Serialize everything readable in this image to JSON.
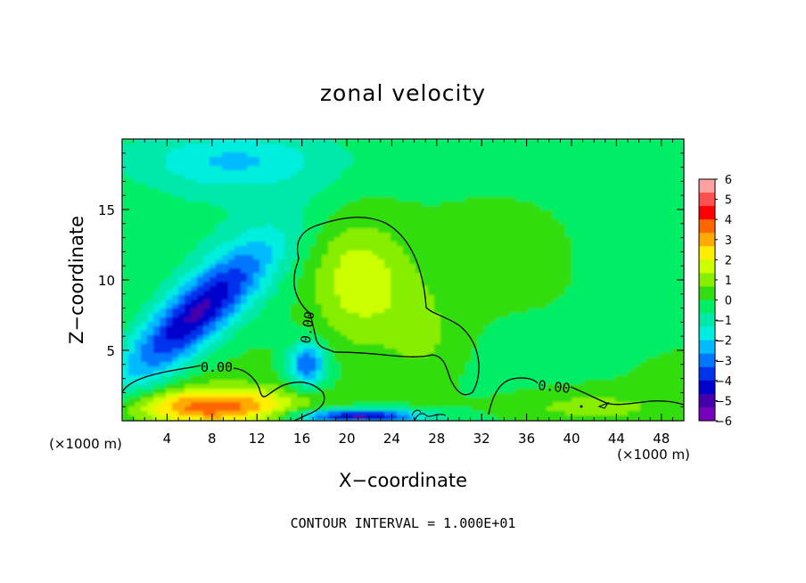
{
  "chart_data": {
    "type": "heatmap",
    "title": "zonal velocity",
    "xlabel": "X−coordinate",
    "ylabel": "Z−coordinate",
    "x_unit_left": "(×1000 m)",
    "x_unit_right": "(×1000 m)",
    "xlim": [
      0,
      50
    ],
    "ylim": [
      0,
      20
    ],
    "x_ticks": [
      4,
      8,
      12,
      16,
      20,
      24,
      28,
      32,
      36,
      40,
      44,
      48
    ],
    "x_tick_labels": [
      "4",
      "8",
      "12",
      "16",
      "20",
      "24",
      "28",
      "32",
      "36",
      "40",
      "44",
      "48"
    ],
    "y_ticks": [
      5,
      10,
      15
    ],
    "y_tick_labels": [
      "5",
      "10",
      "15"
    ],
    "footer": "CONTOUR INTERVAL = 1.000E+01",
    "contour_labels": [
      "0.00",
      "0.00",
      "0.00"
    ],
    "colorbar": {
      "min": -6,
      "max": 6,
      "labels": [
        "6",
        "5",
        "4",
        "3",
        "2",
        "1",
        "0",
        "−1",
        "−2",
        "−3",
        "−4",
        "−5",
        "−6"
      ],
      "colors": [
        "#ffa0a0",
        "#ff5050",
        "#ff0000",
        "#ff6600",
        "#ffaa00",
        "#ffee00",
        "#ccff00",
        "#88ee00",
        "#33dd11",
        "#00ee66",
        "#00e8aa",
        "#00eedd",
        "#00bbff",
        "#0077ff",
        "#0033ee",
        "#0000cc",
        "#4400aa",
        "#7700bb"
      ]
    },
    "field_features": [
      {
        "name": "positive core",
        "x": 21,
        "z": 10,
        "value": 2.0,
        "sx": 3.2,
        "sz": 3.0,
        "rot": -0.6
      },
      {
        "name": "negative band",
        "x": 6.5,
        "z": 7.5,
        "value": -4.6,
        "sx": 5.5,
        "sz": 1.6,
        "rot": 0.62
      },
      {
        "name": "negative spot",
        "x": 16.5,
        "z": 4.0,
        "value": -3.5,
        "sx": 1.2,
        "sz": 1.1,
        "rot": 0.0
      },
      {
        "name": "cyan top",
        "x": 10,
        "z": 18.5,
        "value": -1.8,
        "sx": 6,
        "sz": 1.5,
        "rot": 0.0
      },
      {
        "name": "positive tail",
        "x": 27,
        "z": 5.5,
        "value": 0.8,
        "sx": 2.5,
        "sz": 3.0,
        "rot": 0.0
      },
      {
        "name": "surface positive left",
        "x": 8,
        "z": 1.0,
        "value": 3.5,
        "sx": 5,
        "sz": 0.9,
        "rot": 0.0
      },
      {
        "name": "surface positive right",
        "x": 40,
        "z": 1.0,
        "value": 1.0,
        "sx": 6,
        "sz": 0.9,
        "rot": 0.0
      },
      {
        "name": "surface negative center",
        "x": 21,
        "z": 0.3,
        "value": -5.0,
        "sx": 4,
        "sz": 0.35,
        "rot": 0.0
      }
    ]
  }
}
